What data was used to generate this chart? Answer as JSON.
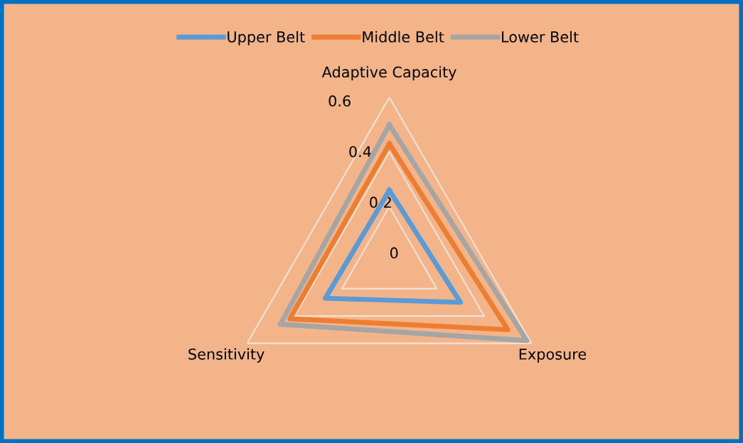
{
  "chart_data": {
    "type": "radar",
    "categories": [
      "Adaptive Capacity",
      "Exposure",
      "Sensitivity"
    ],
    "series": [
      {
        "name": "Upper Belt",
        "color": "#5b9bd5",
        "values": [
          0.26,
          0.3,
          0.27
        ]
      },
      {
        "name": "Middle Belt",
        "color": "#ed7d31",
        "values": [
          0.43,
          0.5,
          0.42
        ]
      },
      {
        "name": "Lower Belt",
        "color": "#a5a5a5",
        "values": [
          0.5,
          0.58,
          0.46
        ]
      }
    ],
    "ylim": [
      0,
      0.6
    ],
    "yticks": [
      0,
      0.2,
      0.4,
      0.6
    ],
    "grid": true,
    "legend": "top",
    "marker": "none",
    "line_style": "solid"
  }
}
